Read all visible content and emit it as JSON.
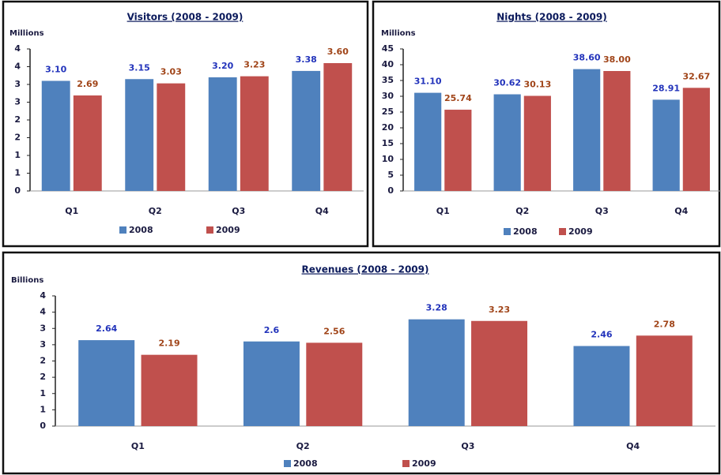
{
  "chart_data": [
    {
      "type": "bar",
      "title": "Visitors  (2008 - 2009)",
      "y_label": "Millions",
      "categories": [
        "Q1",
        "Q2",
        "Q3",
        "Q4"
      ],
      "series": [
        {
          "name": "2008",
          "color": "#4f81bd",
          "label_color": "#2233bb",
          "values": [
            3.1,
            3.15,
            3.2,
            3.38
          ],
          "value_labels": [
            "3.10",
            "3.15",
            "3.20",
            "3.38"
          ]
        },
        {
          "name": "2009",
          "color": "#c0504d",
          "label_color": "#a04418",
          "values": [
            2.69,
            3.03,
            3.23,
            3.6
          ],
          "value_labels": [
            "2.69",
            "3.03",
            "3.23",
            "3.60"
          ]
        }
      ],
      "ylim": [
        0,
        4
      ],
      "yticks": [
        0,
        {
          "value": 0.5,
          "label": "1"
        },
        1,
        {
          "value": 1.5,
          "label": "2"
        },
        2,
        {
          "value": 2.5,
          "label": "3"
        },
        3,
        {
          "value": 3.5,
          "label": "4"
        },
        4
      ],
      "grid": false,
      "legend": "bottom"
    },
    {
      "type": "bar",
      "title": "Nights (2008 - 2009)",
      "y_label": "Millions",
      "categories": [
        "Q1",
        "Q2",
        "Q3",
        "Q4"
      ],
      "series": [
        {
          "name": "2008",
          "color": "#4f81bd",
          "label_color": "#2233bb",
          "values": [
            31.1,
            30.62,
            38.6,
            28.91
          ],
          "value_labels": [
            "31.10",
            "30.62",
            "38.60",
            "28.91"
          ]
        },
        {
          "name": "2009",
          "color": "#c0504d",
          "label_color": "#a04418",
          "values": [
            25.74,
            30.13,
            38,
            32.67
          ],
          "value_labels": [
            "25.74",
            "30.13",
            "38.00",
            "32.67"
          ]
        }
      ],
      "ylim": [
        0,
        45
      ],
      "yticks": [
        0,
        5,
        10,
        15,
        20,
        25,
        30,
        35,
        40,
        45
      ],
      "grid": false,
      "legend": "bottom"
    },
    {
      "type": "bar",
      "title": "Revenues (2008 - 2009)",
      "y_label": "Billions",
      "categories": [
        "Q1",
        "Q2",
        "Q3",
        "Q4"
      ],
      "series": [
        {
          "name": "2008",
          "color": "#4f81bd",
          "label_color": "#2233bb",
          "values": [
            2.64,
            2.6,
            3.28,
            2.46
          ]
        },
        {
          "name": "2009",
          "color": "#c0504d",
          "label_color": "#a04418",
          "values": [
            2.19,
            2.56,
            3.23,
            2.78
          ]
        }
      ],
      "ylim": [
        0,
        4
      ],
      "yticks": [
        0,
        {
          "value": 0.5,
          "label": "1"
        },
        1,
        {
          "value": 1.5,
          "label": "2"
        },
        2,
        {
          "value": 2.5,
          "label": "3"
        },
        3,
        {
          "value": 3.5,
          "label": "4"
        },
        4
      ],
      "grid": false,
      "legend": "bottom"
    }
  ]
}
